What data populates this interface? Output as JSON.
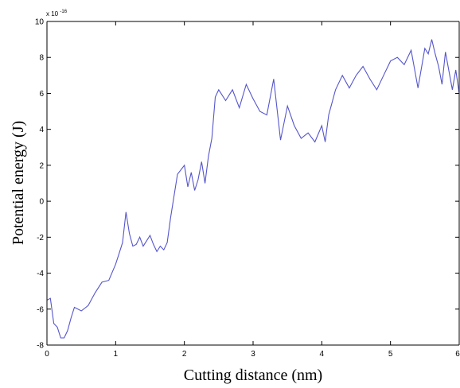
{
  "chart_data": {
    "type": "line",
    "title": "",
    "xlabel": "Cutting distance (nm)",
    "ylabel": "Potential energy (J)",
    "y_exponent_label": "x 10",
    "y_exponent_power": "-16",
    "xlim": [
      0,
      6
    ],
    "ylim": [
      -8,
      10
    ],
    "xticks": [
      0,
      1,
      2,
      3,
      4,
      5,
      6
    ],
    "xtick_labels": [
      "0",
      "1",
      "2",
      "3",
      "4",
      "5",
      "6"
    ],
    "yticks": [
      -8,
      -6,
      -4,
      -2,
      0,
      2,
      4,
      6,
      8,
      10
    ],
    "ytick_labels": [
      "-8",
      "-6",
      "-4",
      "-2",
      "0",
      "2",
      "4",
      "6",
      "8",
      "10"
    ],
    "grid": false,
    "line_color": "#5555cc",
    "series": [
      {
        "x": [
          0,
          0.05,
          0.1,
          0.15,
          0.2,
          0.25,
          0.3,
          0.35,
          0.4,
          0.5,
          0.6,
          0.7,
          0.8,
          0.9,
          1.0,
          1.05,
          1.1,
          1.15,
          1.2,
          1.25,
          1.3,
          1.35,
          1.4,
          1.45,
          1.5,
          1.55,
          1.6,
          1.65,
          1.7,
          1.75,
          1.8,
          1.9,
          2.0,
          2.05,
          2.1,
          2.15,
          2.2,
          2.25,
          2.3,
          2.35,
          2.4,
          2.45,
          2.5,
          2.6,
          2.7,
          2.8,
          2.9,
          3.0,
          3.1,
          3.2,
          3.3,
          3.4,
          3.5,
          3.6,
          3.7,
          3.8,
          3.9,
          4.0,
          4.05,
          4.1,
          4.15,
          4.2,
          4.3,
          4.4,
          4.5,
          4.6,
          4.7,
          4.8,
          4.9,
          5.0,
          5.1,
          5.2,
          5.3,
          5.4,
          5.5,
          5.55,
          5.6,
          5.65,
          5.7,
          5.75,
          5.8,
          5.9,
          5.95,
          6.0
        ],
        "y": [
          -5.5,
          -5.4,
          -6.8,
          -7.0,
          -7.6,
          -7.6,
          -7.2,
          -6.5,
          -5.9,
          -6.1,
          -5.8,
          -5.1,
          -4.5,
          -4.4,
          -3.5,
          -2.9,
          -2.3,
          -0.6,
          -1.8,
          -2.5,
          -2.4,
          -2.0,
          -2.5,
          -2.2,
          -1.9,
          -2.4,
          -2.8,
          -2.5,
          -2.7,
          -2.3,
          -0.9,
          1.5,
          2.0,
          0.8,
          1.6,
          0.6,
          1.2,
          2.2,
          1.0,
          2.5,
          3.5,
          5.8,
          6.2,
          5.6,
          6.2,
          5.2,
          6.5,
          5.7,
          5.0,
          4.8,
          6.8,
          3.4,
          5.3,
          4.2,
          3.5,
          3.8,
          3.3,
          4.2,
          3.3,
          4.8,
          5.5,
          6.2,
          7.0,
          6.3,
          7.0,
          7.5,
          6.8,
          6.2,
          7.0,
          7.8,
          8.0,
          7.6,
          8.4,
          6.3,
          8.5,
          8.2,
          9.0,
          8.2,
          7.5,
          6.5,
          8.3,
          6.2,
          7.3,
          6.0
        ]
      }
    ]
  }
}
